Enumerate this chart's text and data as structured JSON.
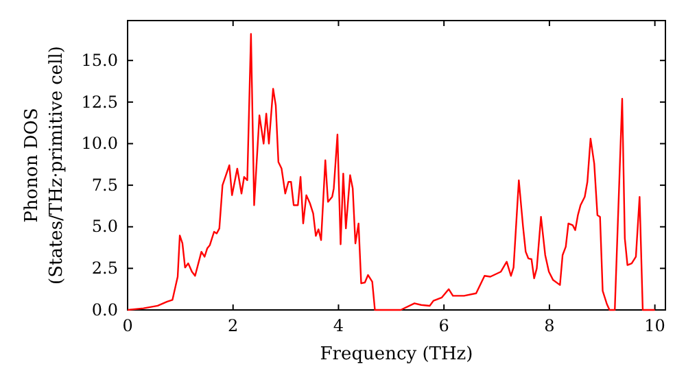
{
  "chart_data": {
    "type": "line",
    "xlabel": "Frequency (THz)",
    "ylabel": "Phonon DOS\n(States/THz·primitive cell)",
    "xlim": [
      0,
      10.2
    ],
    "ylim": [
      0,
      17.4
    ],
    "xticks": [
      0,
      2,
      4,
      6,
      8,
      10
    ],
    "yticks": [
      {
        "value": 0,
        "label": "0.0"
      },
      {
        "value": 2.5,
        "label": "2.5"
      },
      {
        "value": 5,
        "label": "5.0"
      },
      {
        "value": 7.5,
        "label": "7.5"
      },
      {
        "value": 10,
        "label": "10.0"
      },
      {
        "value": 12.5,
        "label": "12.5"
      },
      {
        "value": 15,
        "label": "15.0"
      }
    ],
    "grid": false,
    "marker": "none",
    "line_style": "solid",
    "series": [
      {
        "color": "#ff0000",
        "x": [
          0,
          0.3,
          0.57,
          0.75,
          0.85,
          0.95,
          0.99,
          1.04,
          1.09,
          1.15,
          1.22,
          1.28,
          1.4,
          1.46,
          1.51,
          1.56,
          1.64,
          1.69,
          1.74,
          1.8,
          1.93,
          1.98,
          2.08,
          2.16,
          2.21,
          2.27,
          2.34,
          2.4,
          2.5,
          2.58,
          2.63,
          2.68,
          2.76,
          2.81,
          2.86,
          2.92,
          2.99,
          3.05,
          3.1,
          3.15,
          3.23,
          3.28,
          3.33,
          3.39,
          3.46,
          3.52,
          3.57,
          3.62,
          3.67,
          3.75,
          3.8,
          3.88,
          3.91,
          3.98,
          4.04,
          4.09,
          4.14,
          4.22,
          4.27,
          4.32,
          4.38,
          4.43,
          4.5,
          4.56,
          4.64,
          4.69,
          5.18,
          5.44,
          5.57,
          5.73,
          5.8,
          5.96,
          6.09,
          6.17,
          6.38,
          6.61,
          6.77,
          6.88,
          7.08,
          7.19,
          7.27,
          7.32,
          7.42,
          7.5,
          7.55,
          7.6,
          7.66,
          7.71,
          7.76,
          7.84,
          7.92,
          7.99,
          8.07,
          8.2,
          8.25,
          8.31,
          8.36,
          8.44,
          8.49,
          8.54,
          8.59,
          8.67,
          8.72,
          8.78,
          8.85,
          8.91,
          8.96,
          9.01,
          9.09,
          9.14,
          9.24,
          9.38,
          9.43,
          9.48,
          9.56,
          9.64,
          9.71,
          9.77,
          10.0
        ],
        "values": [
          0,
          0.1,
          0.25,
          0.5,
          0.6,
          2.0,
          4.48,
          4.0,
          2.55,
          2.8,
          2.3,
          2.05,
          3.5,
          3.2,
          3.7,
          3.9,
          4.7,
          4.6,
          4.9,
          7.5,
          8.7,
          6.9,
          8.5,
          7.0,
          8.0,
          7.8,
          16.6,
          6.3,
          11.7,
          10.0,
          11.8,
          10.0,
          13.3,
          12.3,
          8.9,
          8.5,
          7.0,
          7.7,
          7.7,
          6.3,
          6.3,
          8.0,
          5.2,
          6.9,
          6.4,
          5.8,
          4.45,
          4.85,
          4.2,
          9.0,
          6.5,
          6.8,
          7.3,
          10.55,
          3.95,
          8.2,
          4.9,
          8.1,
          7.3,
          4.0,
          5.2,
          1.6,
          1.65,
          2.1,
          1.7,
          0,
          0,
          0.4,
          0.3,
          0.25,
          0.55,
          0.75,
          1.25,
          0.85,
          0.85,
          1.0,
          2.05,
          2.0,
          2.3,
          2.9,
          2.05,
          2.55,
          7.8,
          5.0,
          3.5,
          3.1,
          3.05,
          1.9,
          2.5,
          5.6,
          3.3,
          2.3,
          1.8,
          1.5,
          3.3,
          3.8,
          5.2,
          5.1,
          4.8,
          5.7,
          6.3,
          6.8,
          7.7,
          10.3,
          8.8,
          5.7,
          5.6,
          1.15,
          0.35,
          0,
          0,
          12.7,
          4.3,
          2.7,
          2.8,
          3.2,
          6.8,
          0,
          0
        ]
      }
    ]
  }
}
